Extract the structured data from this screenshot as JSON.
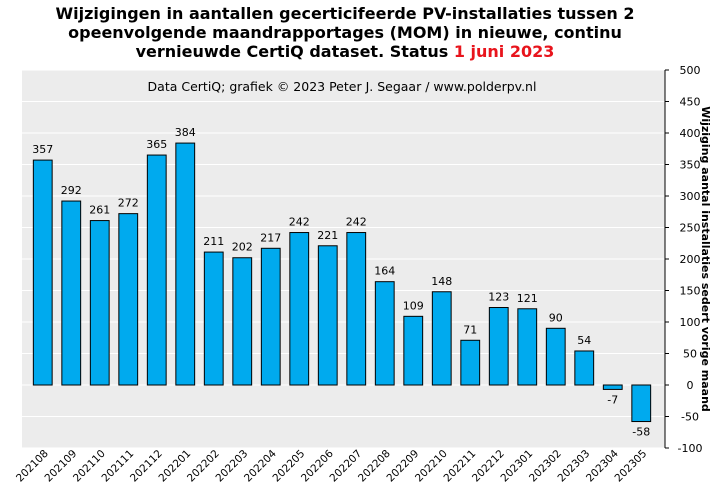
{
  "chart_data": {
    "type": "bar",
    "title_lines": [
      "Wijzigingen  in aantallen gecerticifeerde PV-installaties  tussen 2",
      "opeenvolgende maandrapportages (MOM) in nieuwe, continu",
      "vernieuwde CertiQ dataset. Status "
    ],
    "title_date": "1 juni 2023",
    "credit": "Data CertiQ; grafiek © 2023 Peter J. Segaar / www.polderpv.nl",
    "ylabel": "Wijziging aantal installaties sedert vorige maand",
    "ylim": [
      -100,
      500
    ],
    "yticks": [
      -100,
      -50,
      0,
      50,
      100,
      150,
      200,
      250,
      300,
      350,
      400,
      450,
      500
    ],
    "categories": [
      "202108",
      "202109",
      "202110",
      "202111",
      "202112",
      "202201",
      "202202",
      "202203",
      "202204",
      "202205",
      "202206",
      "202207",
      "202208",
      "202209",
      "202210",
      "202211",
      "202212",
      "202301",
      "202302",
      "202303",
      "202304",
      "202305"
    ],
    "values": [
      357,
      292,
      261,
      272,
      365,
      384,
      211,
      202,
      217,
      242,
      221,
      242,
      164,
      109,
      148,
      71,
      123,
      121,
      90,
      54,
      -7,
      -58
    ],
    "grid": true,
    "colors": {
      "bar": "#00aaee",
      "plot_bg": "#ececec",
      "grid": "#ffffff",
      "title_date": "#e8141c"
    }
  }
}
